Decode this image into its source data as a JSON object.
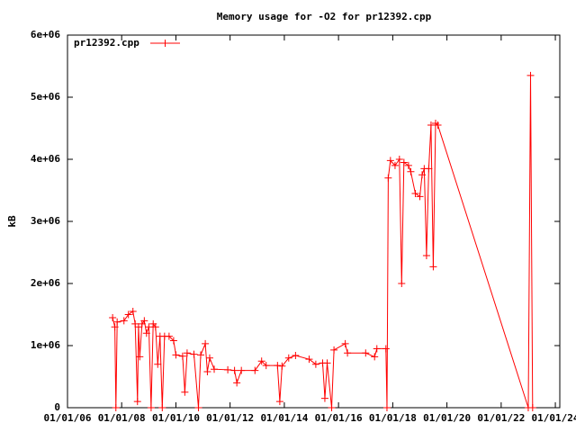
{
  "chart_data": {
    "type": "line",
    "title": "Memory usage for -O2 for pr12392.cpp",
    "y_label": "kB",
    "legend": "top-left",
    "x": [
      "09/01/07",
      "10/01/07",
      "10/15/07",
      "11/01/07",
      "02/01/08",
      "04/01/08",
      "06/01/08",
      "07/01/08",
      "08/01/08",
      "08/15/08",
      "09/01/08",
      "10/01/08",
      "11/01/08",
      "12/01/08",
      "01/01/09",
      "02/01/09",
      "03/01/09",
      "04/01/09",
      "05/01/09",
      "06/01/09",
      "07/01/09",
      "08/01/09",
      "10/01/09",
      "12/01/09",
      "01/01/10",
      "04/01/10",
      "05/01/10",
      "06/01/10",
      "09/01/10",
      "11/01/10",
      "12/01/10",
      "02/01/11",
      "03/01/11",
      "04/01/11",
      "06/01/11",
      "12/01/11",
      "03/01/12",
      "04/01/12",
      "06/01/12",
      "12/01/12",
      "03/01/13",
      "05/01/13",
      "10/01/13",
      "11/01/13",
      "12/01/13",
      "03/01/14",
      "06/01/14",
      "12/01/14",
      "03/01/15",
      "06/01/15",
      "07/01/15",
      "08/01/15",
      "10/01/15",
      "11/01/15",
      "04/01/16",
      "05/01/16",
      "01/01/17",
      "05/01/17",
      "06/01/17",
      "10/01/17",
      "10/15/17",
      "11/01/17",
      "12/01/17",
      "02/01/18",
      "04/01/18",
      "05/01/18",
      "06/01/18",
      "08/01/18",
      "09/01/18",
      "11/01/18",
      "01/01/19",
      "02/01/19",
      "03/01/19",
      "04/01/19",
      "05/01/19",
      "06/01/19",
      "07/01/19",
      "08/01/19",
      "09/01/19",
      "01/01/23",
      "02/01/23",
      "03/01/23"
    ],
    "series": [
      {
        "name": "pr12392.cpp",
        "color": "#ff0000",
        "values": [
          1450000,
          1300000,
          0,
          1380000,
          1400000,
          1500000,
          1550000,
          1350000,
          100000,
          1300000,
          820000,
          1350000,
          1400000,
          1200000,
          1300000,
          0,
          1350000,
          1300000,
          700000,
          1150000,
          0,
          1150000,
          1150000,
          1080000,
          850000,
          830000,
          250000,
          880000,
          860000,
          0,
          850000,
          1030000,
          580000,
          800000,
          620000,
          610000,
          600000,
          400000,
          600000,
          600000,
          750000,
          680000,
          680000,
          100000,
          670000,
          800000,
          840000,
          780000,
          700000,
          720000,
          150000,
          720000,
          0,
          930000,
          1030000,
          880000,
          880000,
          820000,
          950000,
          950000,
          0,
          3700000,
          3980000,
          3900000,
          4000000,
          2000000,
          3950000,
          3900000,
          3800000,
          3450000,
          3400000,
          3750000,
          3850000,
          2450000,
          3850000,
          4550000,
          2270000,
          4580000,
          4550000,
          0,
          5350000,
          0
        ]
      }
    ],
    "xlim": [
      "01/01/06",
      "03/01/24"
    ],
    "xticks": [
      "01/01/06",
      "01/01/08",
      "01/01/10",
      "01/01/12",
      "01/01/14",
      "01/01/16",
      "01/01/18",
      "01/01/20",
      "01/01/22",
      "01/01/24"
    ],
    "ylim": [
      0,
      6000000
    ],
    "yticks": [
      0,
      {
        "value": 1000000,
        "label": "1e+06"
      },
      {
        "value": 2000000,
        "label": "2e+06"
      },
      {
        "value": 3000000,
        "label": "3e+06"
      },
      {
        "value": 4000000,
        "label": "4e+06"
      },
      {
        "value": 5000000,
        "label": "5e+06"
      },
      {
        "value": 6000000,
        "label": "6e+06"
      }
    ]
  }
}
